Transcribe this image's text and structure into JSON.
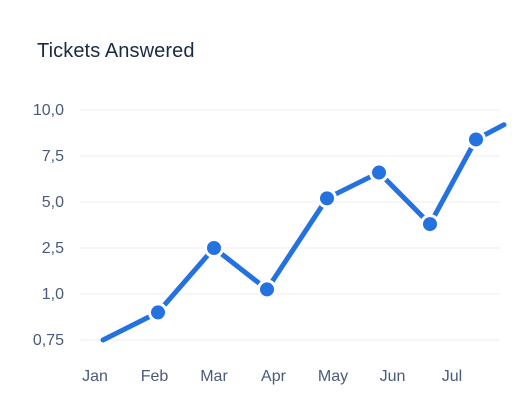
{
  "chart_data": {
    "type": "line",
    "title": "Tickets Answered",
    "xlabel": "",
    "ylabel": "",
    "categories": [
      "Jan",
      "Feb",
      "Mar",
      "Apr",
      "May",
      "Jun",
      "Jul"
    ],
    "y_ticks": [
      "0,75",
      "1,0",
      "2,5",
      "5,0",
      "7,5",
      "10,0"
    ],
    "series": [
      {
        "points": [
          {
            "x": "Jan",
            "y": 0.75,
            "marker": false
          },
          {
            "x": "Feb",
            "y": 0.9,
            "marker": true
          },
          {
            "x": "Mar",
            "y": 2.5,
            "marker": true
          },
          {
            "x": "Apr",
            "y": 1.15,
            "marker": true
          },
          {
            "x": "May",
            "y": 5.2,
            "marker": true
          },
          {
            "x": "Jun",
            "y": 6.6,
            "marker": true
          },
          {
            "x": "Jul",
            "y": 3.8,
            "marker": true
          },
          {
            "x": "Jul",
            "y": 8.4,
            "marker": true
          },
          {
            "x": "Jul",
            "y": 9.2,
            "marker": false
          }
        ]
      }
    ],
    "grid": true,
    "legend": "none"
  },
  "colors": {
    "line": "#2472e0",
    "marker_fill": "#2472e0",
    "marker_stroke": "#ffffff",
    "grid": "#eceef2",
    "text": "#4a5a78",
    "title": "#1a2a44"
  }
}
